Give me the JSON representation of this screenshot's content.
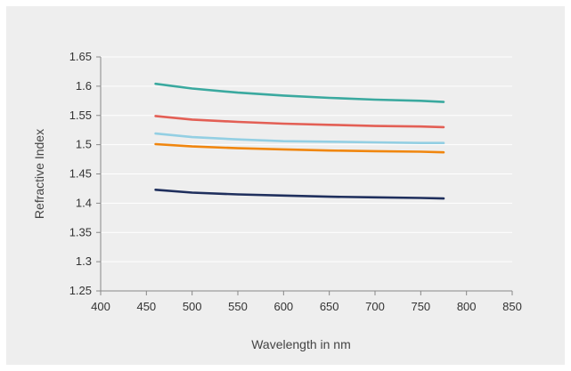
{
  "chart_data": {
    "type": "line",
    "title": "",
    "xlabel": "Wavelength in nm",
    "ylabel": "Refractive Index",
    "xlim": [
      400,
      850
    ],
    "ylim": [
      1.25,
      1.65
    ],
    "grid": "horizontal",
    "legend": "none",
    "x_ticks": [
      "400",
      "450",
      "500",
      "550",
      "600",
      "650",
      "700",
      "750",
      "800",
      "850"
    ],
    "y_ticks": [
      "1.25",
      "1.3",
      "1.35",
      "1.4",
      "1.45",
      "1.5",
      "1.55",
      "1.6",
      "1.65"
    ],
    "x": [
      460,
      500,
      550,
      600,
      650,
      700,
      750,
      775
    ],
    "series": [
      {
        "color": "#3aa99f",
        "values": [
          1.604,
          1.596,
          1.589,
          1.584,
          1.58,
          1.577,
          1.575,
          1.573
        ]
      },
      {
        "color": "#e35f55",
        "values": [
          1.549,
          1.543,
          1.539,
          1.536,
          1.534,
          1.532,
          1.531,
          1.53
        ]
      },
      {
        "color": "#93cfe3",
        "values": [
          1.519,
          1.513,
          1.509,
          1.506,
          1.505,
          1.504,
          1.503,
          1.503
        ]
      },
      {
        "color": "#f0860e",
        "values": [
          1.501,
          1.497,
          1.494,
          1.492,
          1.49,
          1.489,
          1.488,
          1.487
        ]
      },
      {
        "color": "#1f2f5d",
        "values": [
          1.423,
          1.418,
          1.415,
          1.413,
          1.411,
          1.41,
          1.409,
          1.408
        ]
      }
    ]
  }
}
